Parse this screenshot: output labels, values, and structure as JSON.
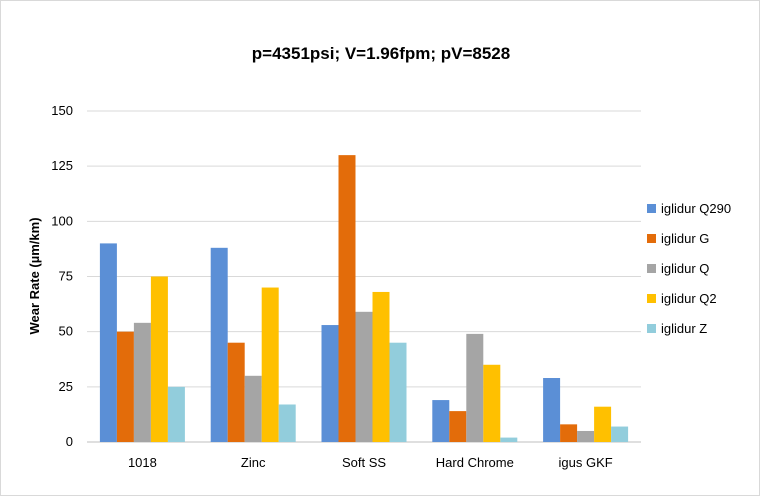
{
  "chart_data": {
    "type": "bar",
    "title": "p=4351psi; V=1.96fpm; pV=8528",
    "xlabel": "",
    "ylabel": "Wear Rate (µm/km)",
    "ylim": [
      0,
      150
    ],
    "yticks": [
      "0",
      "25",
      "50",
      "75",
      "100",
      "125",
      "150"
    ],
    "grid": true,
    "legend_position": "right",
    "categories": [
      "1018",
      "Zinc",
      "Soft SS",
      "Hard Chrome",
      "igus GKF"
    ],
    "series": [
      {
        "name": "iglidur Q290",
        "color": "#5b8fd6",
        "values": [
          90,
          88,
          53,
          19,
          29
        ]
      },
      {
        "name": "iglidur G",
        "color": "#e36c0a",
        "values": [
          50,
          45,
          130,
          14,
          8
        ]
      },
      {
        "name": "iglidur Q",
        "color": "#a5a5a5",
        "values": [
          54,
          30,
          59,
          49,
          5
        ]
      },
      {
        "name": "iglidur Q2",
        "color": "#ffc000",
        "values": [
          75,
          70,
          68,
          35,
          16
        ]
      },
      {
        "name": "iglidur Z",
        "color": "#92cddc",
        "values": [
          25,
          17,
          45,
          2,
          7
        ]
      }
    ]
  }
}
